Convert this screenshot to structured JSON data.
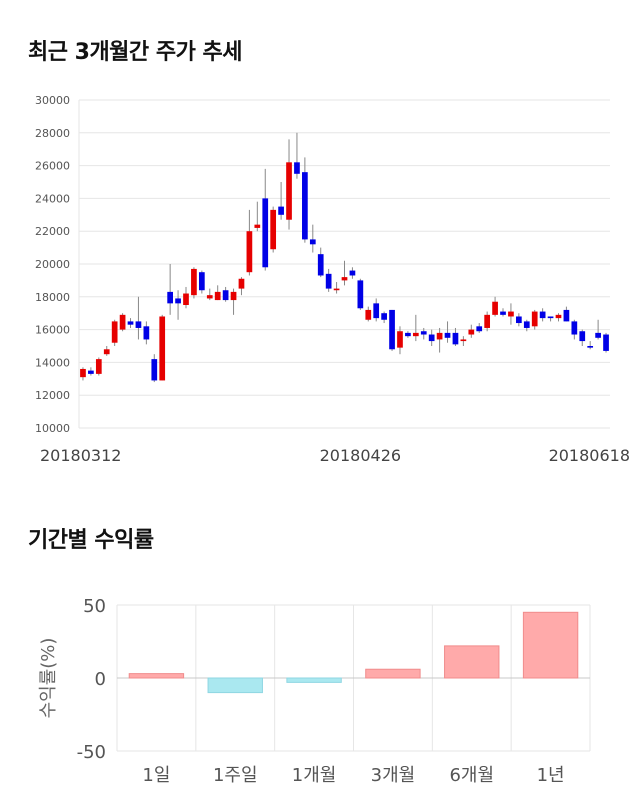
{
  "section1_title": "최근 3개월간 주가 추세",
  "section2_title": "기간별 수익률",
  "colors": {
    "up": "#e60000",
    "down": "#0000e6",
    "pos_bar": "#ffaaaa",
    "neg_bar": "#aae8f0",
    "grid": "#e6e6e6"
  },
  "chart_data": [
    {
      "type": "candlestick",
      "title": "최근 3개월간 주가 추세",
      "y_ticks": [
        "30000",
        "28000",
        "26000",
        "24000",
        "22000",
        "20000",
        "18000",
        "16000",
        "14000",
        "12000",
        "10000"
      ],
      "ylim": [
        10000,
        30000
      ],
      "x_labels": [
        "20180312",
        "20180426",
        "20180618"
      ],
      "x_label_index": [
        0,
        35,
        70
      ],
      "grid": true,
      "candles": [
        [
          13100,
          13600,
          12900,
          13700
        ],
        [
          13500,
          13300,
          13200,
          13700
        ],
        [
          13300,
          14200,
          13200,
          14300
        ],
        [
          14500,
          14800,
          14400,
          15000
        ],
        [
          15200,
          16500,
          15000,
          16600
        ],
        [
          16000,
          16900,
          15900,
          17000
        ],
        [
          16500,
          16300,
          16100,
          16700
        ],
        [
          16500,
          16100,
          15400,
          18000
        ],
        [
          16200,
          15400,
          15100,
          16500
        ],
        [
          14200,
          12900,
          12800,
          14500
        ],
        [
          12900,
          16800,
          12900,
          16900
        ],
        [
          18300,
          17600,
          16900,
          20000
        ],
        [
          17900,
          17600,
          16600,
          18400
        ],
        [
          17500,
          18200,
          17300,
          18600
        ],
        [
          18100,
          19700,
          17900,
          19800
        ],
        [
          19500,
          18400,
          18200,
          19600
        ],
        [
          17900,
          18100,
          17800,
          18500
        ],
        [
          17800,
          18300,
          17800,
          18700
        ],
        [
          18400,
          17800,
          17700,
          18600
        ],
        [
          17800,
          18300,
          16900,
          18500
        ],
        [
          18500,
          19100,
          18100,
          19200
        ],
        [
          19500,
          22000,
          19300,
          23300
        ],
        [
          22200,
          22400,
          22000,
          23800
        ],
        [
          24000,
          19800,
          19600,
          25800
        ],
        [
          20900,
          23300,
          20700,
          23500
        ],
        [
          23500,
          23000,
          22700,
          25000
        ],
        [
          22700,
          26200,
          22100,
          27600
        ],
        [
          26200,
          25500,
          25200,
          28000
        ],
        [
          25600,
          21500,
          21300,
          26500
        ],
        [
          21500,
          21200,
          20700,
          22400
        ],
        [
          20600,
          19300,
          19200,
          21000
        ],
        [
          19400,
          18500,
          18300,
          19700
        ],
        [
          18400,
          18500,
          18200,
          18900
        ],
        [
          19000,
          19200,
          18700,
          20200
        ],
        [
          19600,
          19300,
          19100,
          19800
        ],
        [
          19000,
          17300,
          17200,
          19100
        ],
        [
          16600,
          17200,
          16500,
          17400
        ],
        [
          17600,
          16700,
          16500,
          17900
        ],
        [
          17000,
          16600,
          16400,
          17100
        ],
        [
          17200,
          14800,
          14700,
          17200
        ],
        [
          14900,
          15900,
          14500,
          16200
        ],
        [
          15800,
          15600,
          15500,
          15900
        ],
        [
          15600,
          15800,
          15300,
          16900
        ],
        [
          15900,
          15700,
          15400,
          16100
        ],
        [
          15700,
          15300,
          15000,
          16000
        ],
        [
          15400,
          15800,
          14600,
          16100
        ],
        [
          15800,
          15500,
          15200,
          16500
        ],
        [
          15800,
          15100,
          15000,
          16100
        ],
        [
          15300,
          15400,
          15000,
          15600
        ],
        [
          15700,
          16000,
          15500,
          16300
        ],
        [
          16200,
          15900,
          15800,
          16400
        ],
        [
          16100,
          16900,
          15900,
          17100
        ],
        [
          16900,
          17700,
          16800,
          18000
        ],
        [
          17100,
          16900,
          16800,
          17300
        ],
        [
          16800,
          17100,
          16300,
          17600
        ],
        [
          16800,
          16400,
          16200,
          17000
        ],
        [
          16500,
          16100,
          15900,
          16600
        ],
        [
          16200,
          17100,
          16000,
          17200
        ],
        [
          17100,
          16700,
          16500,
          17300
        ],
        [
          16800,
          16700,
          16500,
          16800
        ],
        [
          16700,
          16900,
          16500,
          17000
        ],
        [
          17200,
          16500,
          16500,
          17400
        ],
        [
          16500,
          15700,
          15400,
          16600
        ],
        [
          15900,
          15300,
          15000,
          16000
        ],
        [
          15000,
          14900,
          14800,
          15300
        ],
        [
          15800,
          15500,
          15400,
          16600
        ],
        [
          15700,
          14700,
          14600,
          15800
        ]
      ]
    },
    {
      "type": "bar",
      "title": "기간별 수익률",
      "ylabel": "수익률(%)",
      "categories": [
        "1일",
        "1주일",
        "1개월",
        "3개월",
        "6개월",
        "1년"
      ],
      "values": [
        3,
        -10,
        -3,
        6,
        22,
        45
      ],
      "y_ticks": [
        "50",
        "0",
        "-50"
      ],
      "ylim": [
        -50,
        50
      ],
      "grid": true
    }
  ]
}
